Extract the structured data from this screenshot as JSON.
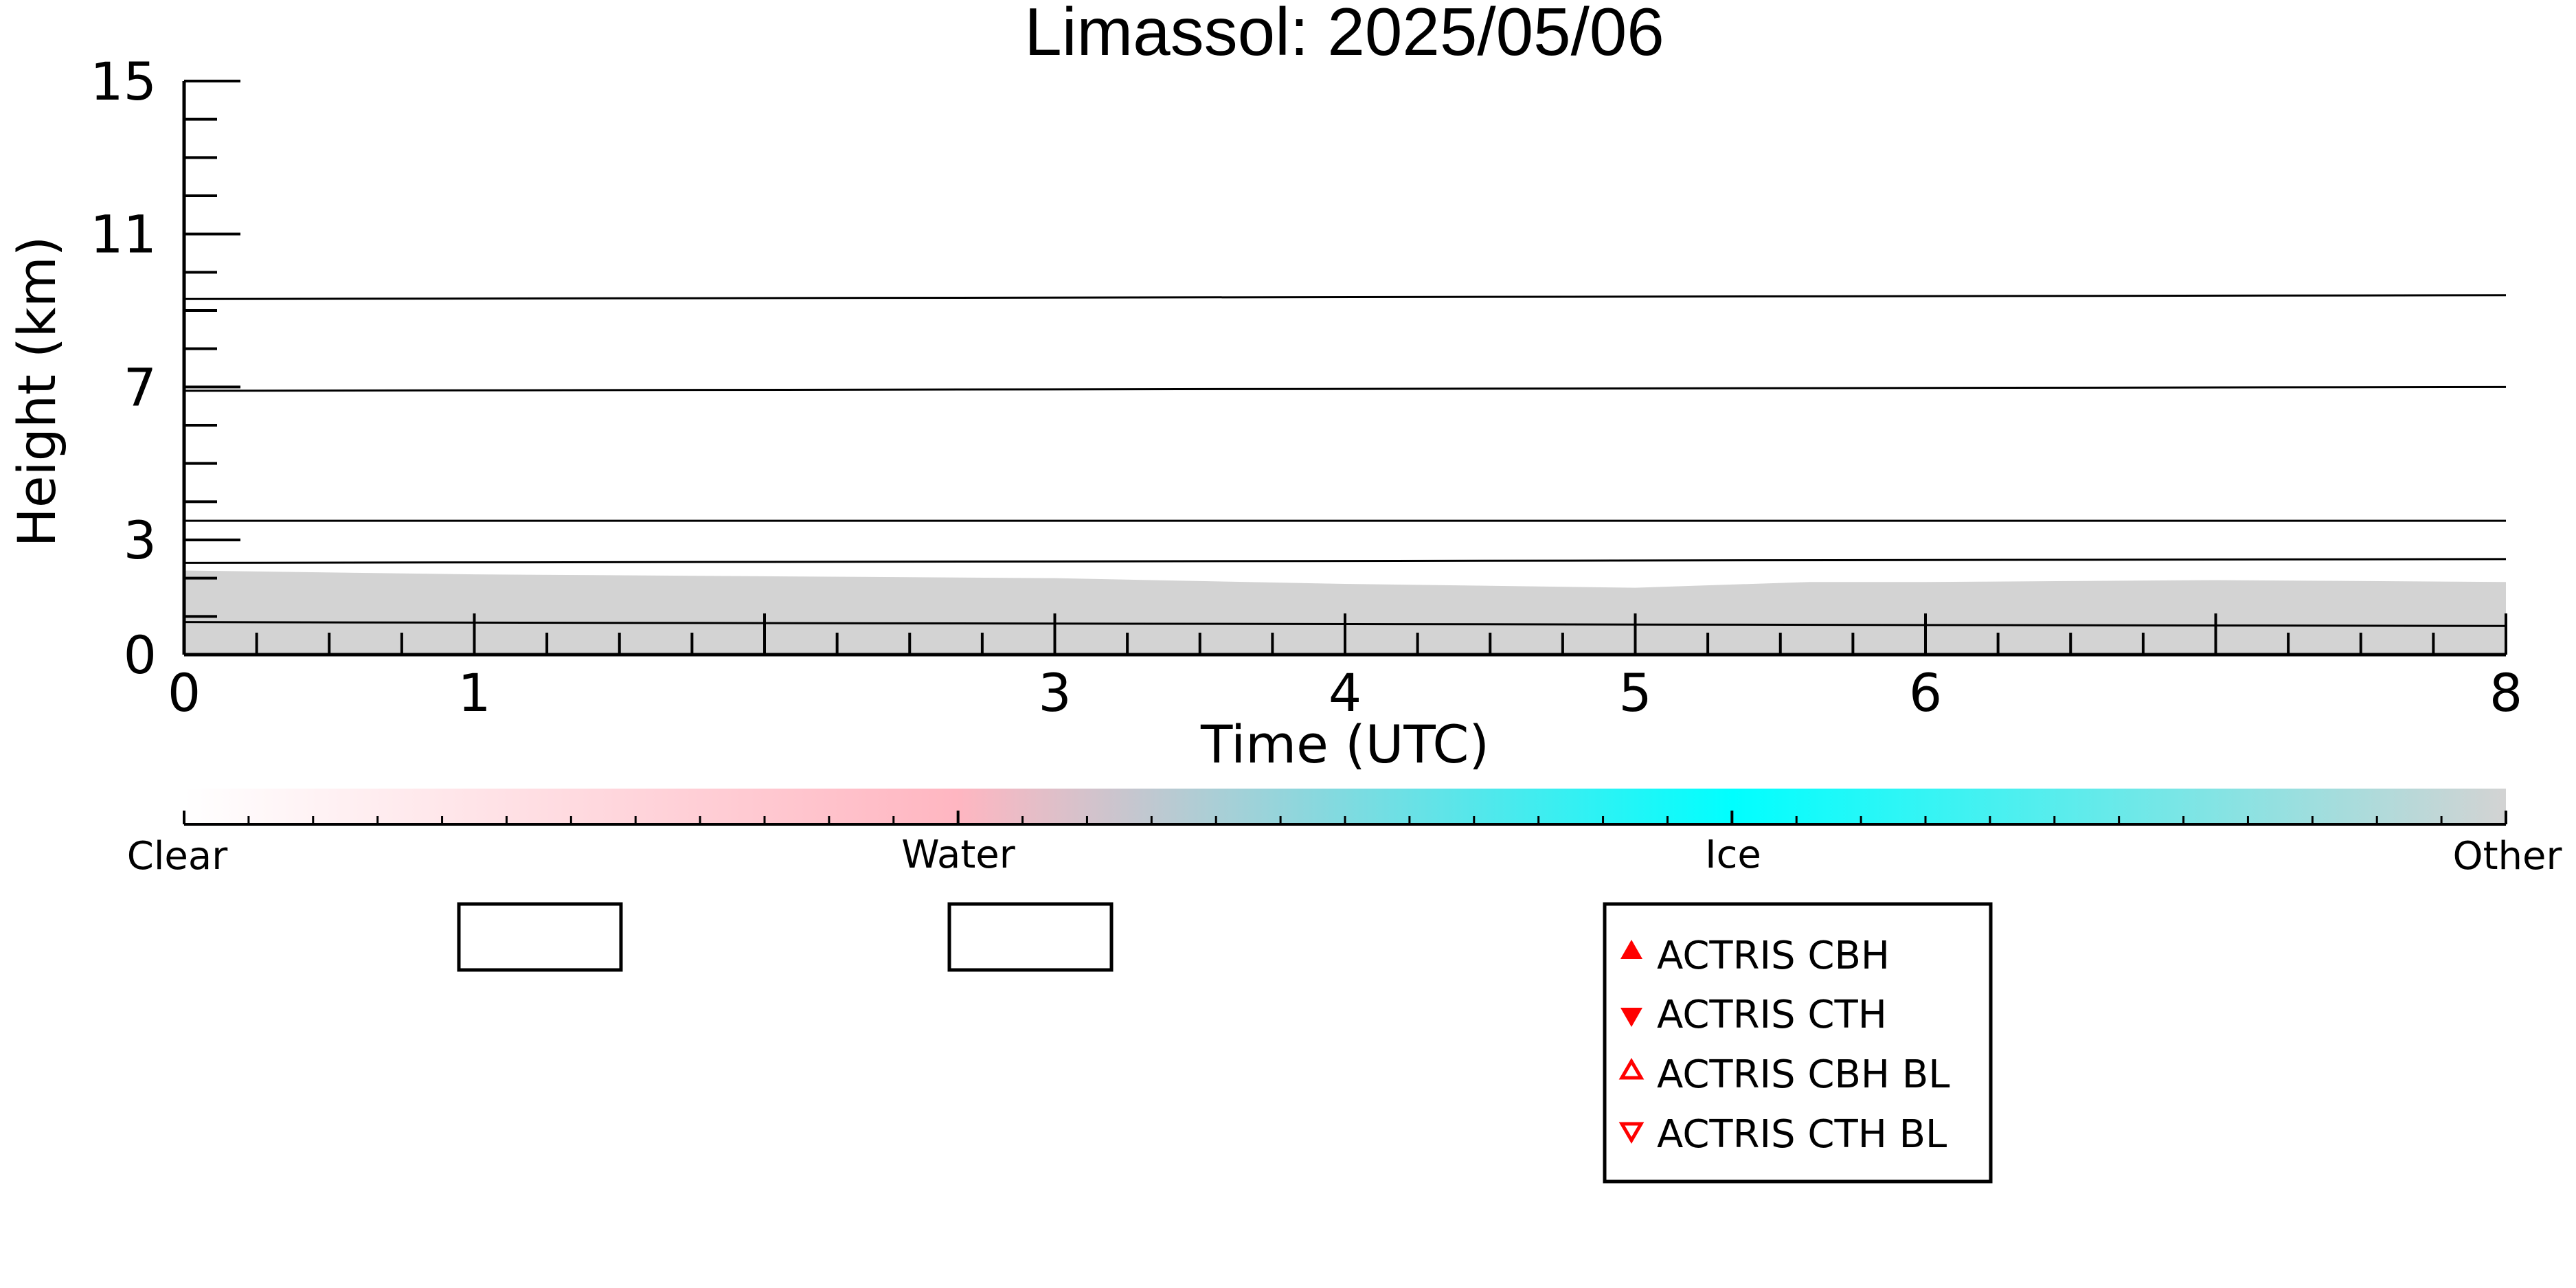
{
  "chart_data": {
    "type": "heatmap",
    "title": "Limassol: 2025/05/06",
    "xlabel": "Time (UTC)",
    "ylabel": "Height (km)",
    "xlim": [
      0,
      8
    ],
    "ylim": [
      0,
      15
    ],
    "x_ticks": [
      "0",
      "1",
      "3",
      "4",
      "5",
      "6",
      "8"
    ],
    "y_ticks": [
      "0",
      "3",
      "7",
      "11",
      "15"
    ],
    "classification_layer": {
      "class": "Other",
      "color": "#d3d3d3",
      "top_km": [
        [
          0,
          2.2
        ],
        [
          1,
          2.1
        ],
        [
          2,
          2.05
        ],
        [
          3,
          2.0
        ],
        [
          4,
          1.85
        ],
        [
          5,
          1.75
        ],
        [
          5.6,
          1.9
        ],
        [
          6,
          1.9
        ],
        [
          7,
          1.95
        ],
        [
          8,
          1.9
        ]
      ]
    },
    "height_lines": [
      {
        "x": [
          0,
          8
        ],
        "y": [
          9.3,
          9.4
        ]
      },
      {
        "x": [
          0,
          8
        ],
        "y": [
          6.9,
          7.0
        ]
      },
      {
        "x": [
          0,
          8
        ],
        "y": [
          3.5,
          3.5
        ]
      },
      {
        "x": [
          0,
          8
        ],
        "y": [
          2.4,
          2.5
        ]
      },
      {
        "x": [
          0,
          8
        ],
        "y": [
          0.85,
          0.75
        ]
      }
    ],
    "colorbar": {
      "labels": [
        "Clear",
        "Water",
        "Ice",
        "Other"
      ],
      "colors": [
        "#ffffff",
        "#ffb6c1",
        "#00ffff",
        "#d3d3d3"
      ]
    },
    "legend": {
      "placement": "bottom-center",
      "entries": [
        {
          "label": "ACTRIS CBH",
          "marker": "triangle-up-filled",
          "color": "#ff0000"
        },
        {
          "label": "ACTRIS CTH",
          "marker": "triangle-down-filled",
          "color": "#ff0000"
        },
        {
          "label": "ACTRIS CBH BL",
          "marker": "triangle-up-open",
          "color": "#ff0000"
        },
        {
          "label": "ACTRIS CTH BL",
          "marker": "triangle-down-open",
          "color": "#ff0000"
        }
      ]
    }
  }
}
